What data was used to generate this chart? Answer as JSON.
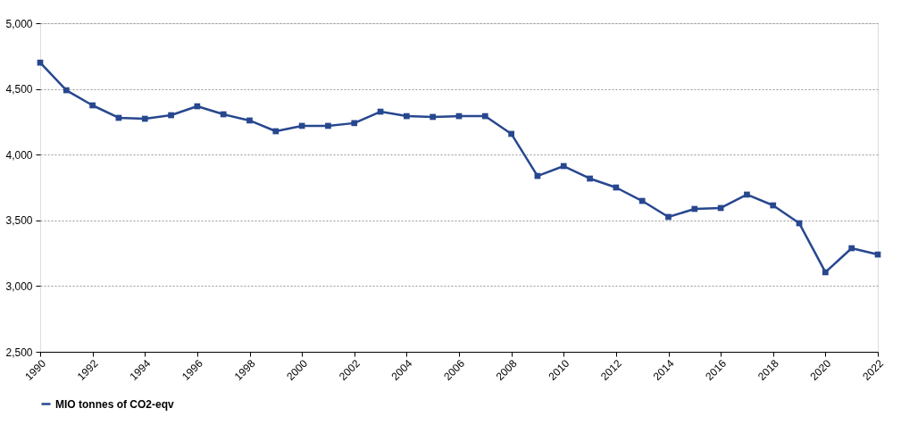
{
  "chart_data": {
    "type": "line",
    "x": [
      1990,
      1991,
      1992,
      1993,
      1994,
      1995,
      1996,
      1997,
      1998,
      1999,
      2000,
      2001,
      2002,
      2003,
      2004,
      2005,
      2006,
      2007,
      2008,
      2009,
      2010,
      2011,
      2012,
      2013,
      2014,
      2015,
      2016,
      2017,
      2018,
      2019,
      2020,
      2021,
      2022
    ],
    "series": [
      {
        "name": "MIO tonnes of CO2-eqv",
        "color": "#27478f",
        "values": [
          4700,
          4490,
          4375,
          4280,
          4273,
          4300,
          4368,
          4307,
          4260,
          4178,
          4219,
          4219,
          4240,
          4327,
          4293,
          4287,
          4293,
          4293,
          4158,
          3838,
          3913,
          3818,
          3750,
          3648,
          3526,
          3587,
          3594,
          3696,
          3614,
          3478,
          3105,
          3288,
          3240
        ]
      }
    ],
    "xlim": [
      1990,
      2022
    ],
    "xticks": [
      1990,
      1992,
      1994,
      1996,
      1998,
      2000,
      2002,
      2004,
      2006,
      2008,
      2010,
      2012,
      2014,
      2016,
      2018,
      2020,
      2022
    ],
    "ylim": [
      2500,
      5000
    ],
    "yticks": [
      {
        "value": 2500,
        "label": "2,500"
      },
      {
        "value": 3000,
        "label": "3,000"
      },
      {
        "value": 3500,
        "label": "3,500"
      },
      {
        "value": 4000,
        "label": "4,000"
      },
      {
        "value": 4500,
        "label": "4,500"
      },
      {
        "value": 5000,
        "label": "5,000"
      }
    ],
    "grid": "y",
    "legend": "bottom",
    "marker": "square",
    "line_style": "solid"
  }
}
